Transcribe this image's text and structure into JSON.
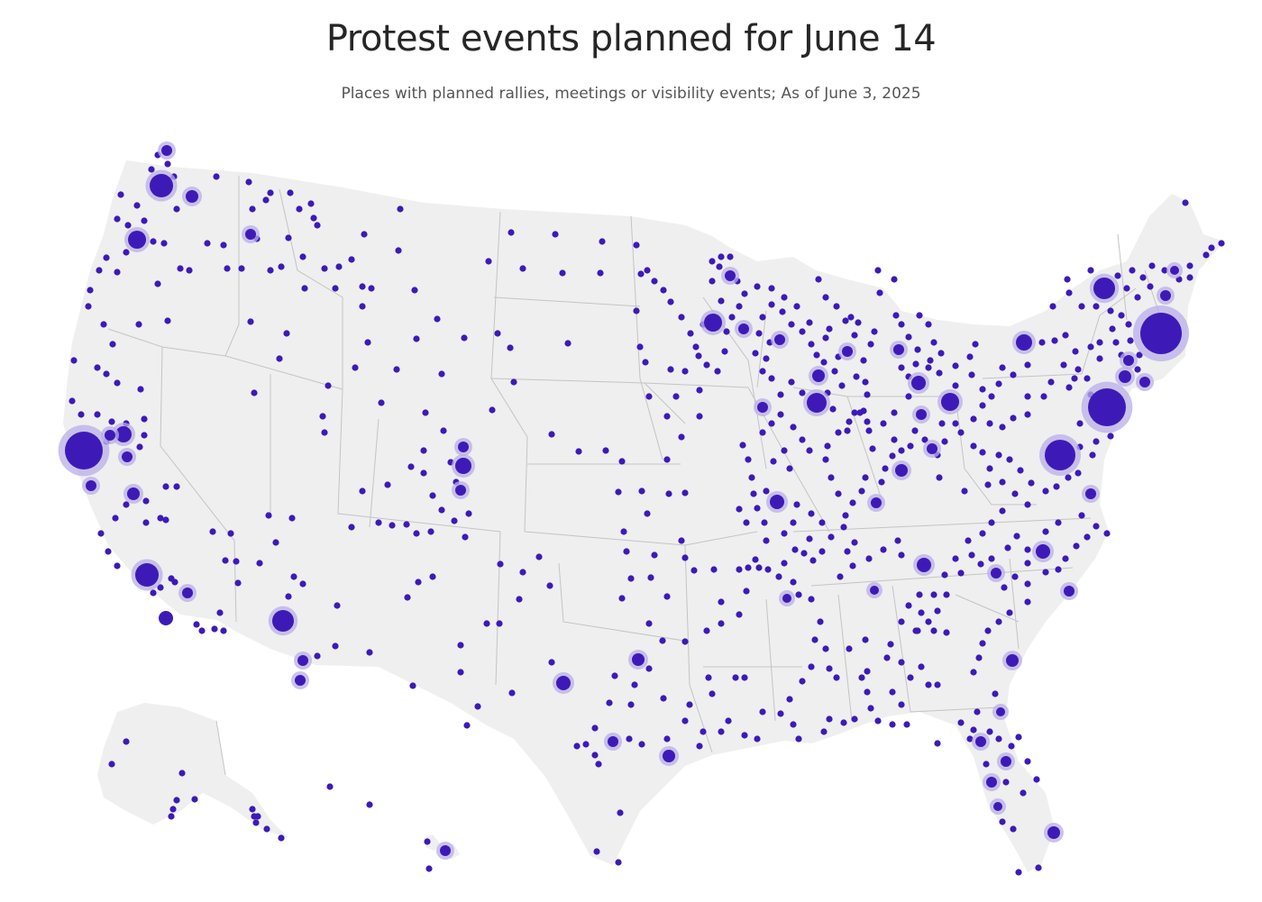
{
  "title": "Protest events planned for June 14",
  "subtitle": "Places with planned rallies, meetings or visibility events; As of June 3, 2025",
  "colors": {
    "land": "#efefef",
    "border": "#c4c4c4",
    "dot": "#3d1ab8",
    "halo": "#b9aee8",
    "background": "#ffffff"
  }
}
